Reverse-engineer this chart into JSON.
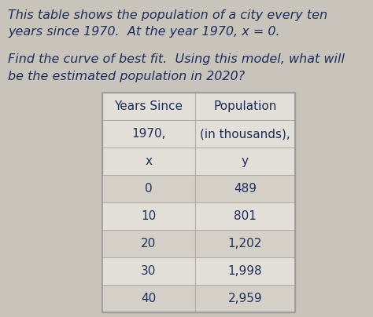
{
  "title_line1": "This table shows the population of a city every ten",
  "title_line2": "years since 1970.  At the year 1970, x = 0.",
  "question_line1": "Find the curve of best fit.  Using this model, what will",
  "question_line2": "be the estimated population in 2020?",
  "col1_header1": "Years Since",
  "col1_header2": "1970,",
  "col1_header3": "x",
  "col2_header1": "Population",
  "col2_header2": "(in thousands),",
  "col2_header3": "y",
  "x_values": [
    "0",
    "10",
    "20",
    "30",
    "40"
  ],
  "y_values": [
    "489",
    "801",
    "1,202",
    "1,998",
    "2,959"
  ],
  "bg_color": "#c8c4bc",
  "table_bg": "#e2dfd8",
  "text_color": "#1e2d5a",
  "title_fontsize": 11.5,
  "table_fontsize": 11,
  "header_fontsize": 11
}
